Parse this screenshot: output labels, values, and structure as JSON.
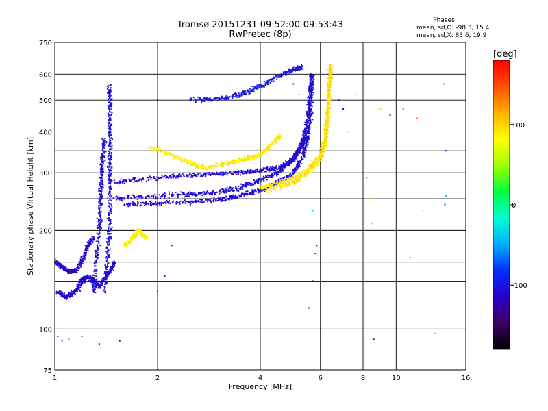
{
  "chart_data": {
    "type": "scatter",
    "title": "Tromsø 20151231 09:52:00-09:53:43",
    "subtitle": "RwPretec (8p)",
    "xlabel": "Frequency [MHz]",
    "ylabel": "Stationary phase Virtual Height [km]",
    "x_scale": "log2",
    "y_scale": "log",
    "xlim": [
      1,
      16
    ],
    "ylim": [
      75,
      750
    ],
    "x_ticks": [
      1,
      2,
      4,
      6,
      8,
      10,
      16
    ],
    "x_grid": [
      1,
      2,
      4,
      6,
      8,
      10,
      16
    ],
    "y_ticks": [
      75,
      100,
      200,
      300,
      400,
      500,
      600,
      750
    ],
    "y_grid": [
      100,
      120,
      140,
      160,
      200,
      250,
      300,
      350,
      400,
      500,
      600
    ],
    "grid": true,
    "phase_info": {
      "title": "Phases",
      "line_o": "mean, sd,O: -98.3, 15.4",
      "line_x": "mean, sd,X:  83.6, 19.9"
    },
    "colorbar": {
      "label": "[deg]",
      "range": [
        -180,
        180
      ],
      "tick_values": [
        100,
        0,
        -100
      ],
      "tick_labels": [
        "100",
        "0",
        "-100"
      ],
      "colormap": [
        "#000000",
        "#3c0060",
        "#2a00c8",
        "#0030ff",
        "#00b0ff",
        "#00ffd0",
        "#00ff40",
        "#a0ff00",
        "#ffff00",
        "#ffb000",
        "#ff5000",
        "#ff0000"
      ]
    },
    "series": [
      {
        "name": "",
        "phase": -105,
        "trace": [
          [
            1.4,
            130
          ],
          [
            1.42,
            160
          ],
          [
            1.45,
            200
          ],
          [
            1.45,
            260
          ],
          [
            1.45,
            320
          ],
          [
            1.45,
            400
          ],
          [
            1.45,
            480
          ],
          [
            1.45,
            550
          ]
        ]
      },
      {
        "name": "",
        "phase": -105,
        "trace": [
          [
            1.3,
            130
          ],
          [
            1.32,
            160
          ],
          [
            1.35,
            200
          ],
          [
            1.36,
            240
          ],
          [
            1.37,
            280
          ],
          [
            1.38,
            330
          ],
          [
            1.4,
            380
          ]
        ]
      },
      {
        "name": "",
        "phase": -110,
        "trace": [
          [
            1.0,
            160
          ],
          [
            1.05,
            155
          ],
          [
            1.1,
            150
          ],
          [
            1.15,
            150
          ],
          [
            1.2,
            160
          ],
          [
            1.25,
            180
          ],
          [
            1.3,
            190
          ]
        ]
      },
      {
        "name": "",
        "phase": -110,
        "trace": [
          [
            1.02,
            130
          ],
          [
            1.08,
            125
          ],
          [
            1.15,
            130
          ],
          [
            1.2,
            140
          ],
          [
            1.25,
            145
          ],
          [
            1.3,
            140
          ],
          [
            1.35,
            135
          ],
          [
            1.45,
            150
          ],
          [
            1.5,
            160
          ]
        ]
      },
      {
        "name": "",
        "phase": -108,
        "trace": [
          [
            1.6,
            240
          ],
          [
            2.0,
            242
          ],
          [
            2.5,
            244
          ],
          [
            3.0,
            248
          ],
          [
            3.5,
            255
          ],
          [
            4.0,
            265
          ],
          [
            4.5,
            280
          ],
          [
            5.0,
            300
          ],
          [
            5.3,
            330
          ],
          [
            5.5,
            380
          ],
          [
            5.6,
            440
          ],
          [
            5.65,
            520
          ],
          [
            5.7,
            600
          ]
        ]
      },
      {
        "name": "",
        "phase": -108,
        "trace": [
          [
            1.5,
            250
          ],
          [
            2.0,
            255
          ],
          [
            2.5,
            258
          ],
          [
            3.0,
            262
          ],
          [
            3.5,
            270
          ],
          [
            4.0,
            285
          ],
          [
            4.5,
            300
          ],
          [
            5.0,
            330
          ],
          [
            5.3,
            370
          ],
          [
            5.5,
            430
          ],
          [
            5.6,
            520
          ],
          [
            5.65,
            600
          ]
        ]
      },
      {
        "name": "",
        "phase": -108,
        "trace": [
          [
            1.5,
            280
          ],
          [
            2.0,
            290
          ],
          [
            2.5,
            295
          ],
          [
            3.0,
            298
          ],
          [
            3.5,
            300
          ],
          [
            4.0,
            305
          ],
          [
            4.5,
            310
          ],
          [
            5.0,
            330
          ],
          [
            5.3,
            360
          ],
          [
            5.5,
            410
          ]
        ]
      },
      {
        "name": "",
        "phase": -100,
        "trace": [
          [
            2.5,
            500
          ],
          [
            3.0,
            505
          ],
          [
            3.5,
            520
          ],
          [
            4.0,
            550
          ],
          [
            4.5,
            590
          ],
          [
            5.0,
            620
          ],
          [
            5.3,
            630
          ]
        ]
      },
      {
        "name": "",
        "phase": 90,
        "trace": [
          [
            1.9,
            360
          ],
          [
            2.2,
            340
          ],
          [
            2.5,
            320
          ],
          [
            2.8,
            310
          ],
          [
            3.2,
            320
          ],
          [
            3.6,
            330
          ],
          [
            4.0,
            340
          ],
          [
            4.3,
            365
          ],
          [
            4.6,
            390
          ]
        ]
      },
      {
        "name": "",
        "phase": 92,
        "trace": [
          [
            4.0,
            270
          ],
          [
            4.5,
            278
          ],
          [
            5.0,
            290
          ],
          [
            5.5,
            305
          ],
          [
            6.0,
            340
          ],
          [
            6.2,
            380
          ],
          [
            6.3,
            450
          ],
          [
            6.35,
            520
          ],
          [
            6.4,
            620
          ]
        ]
      },
      {
        "name": "",
        "phase": 95,
        "trace": [
          [
            4.2,
            265
          ],
          [
            5.0,
            280
          ],
          [
            5.5,
            300
          ],
          [
            6.0,
            330
          ],
          [
            6.2,
            370
          ],
          [
            6.3,
            430
          ],
          [
            6.35,
            500
          ],
          [
            6.4,
            580
          ],
          [
            6.45,
            640
          ]
        ]
      },
      {
        "name": "",
        "phase": 85,
        "trace": [
          [
            1.6,
            180
          ],
          [
            1.7,
            190
          ],
          [
            1.75,
            200
          ],
          [
            1.8,
            195
          ],
          [
            1.85,
            190
          ]
        ]
      }
    ],
    "isolated_points": [
      [
        1.02,
        95,
        -110
      ],
      [
        1.05,
        92,
        -80
      ],
      [
        1.1,
        93,
        20
      ],
      [
        1.2,
        95,
        -90
      ],
      [
        1.35,
        90,
        -110
      ],
      [
        1.55,
        92,
        -150
      ],
      [
        2.2,
        180,
        -90
      ],
      [
        2.1,
        145,
        -110
      ],
      [
        2.0,
        130,
        -110
      ],
      [
        2.0,
        500,
        -110
      ],
      [
        5.2,
        520,
        140
      ],
      [
        5.0,
        560,
        -100
      ],
      [
        5.55,
        116,
        -110
      ],
      [
        5.7,
        230,
        -40
      ],
      [
        5.85,
        180,
        -100
      ],
      [
        5.8,
        170,
        -100
      ],
      [
        5.7,
        140,
        -110
      ],
      [
        6.8,
        500,
        -100
      ],
      [
        7.0,
        470,
        -100
      ],
      [
        7.2,
        400,
        120
      ],
      [
        7.6,
        520,
        110
      ],
      [
        8.2,
        290,
        140
      ],
      [
        8.3,
        250,
        120
      ],
      [
        8.5,
        210,
        110
      ],
      [
        8.6,
        93,
        -120
      ],
      [
        9.6,
        450,
        -110
      ],
      [
        10.5,
        470,
        150
      ],
      [
        11.0,
        165,
        140
      ],
      [
        11.5,
        440,
        150
      ],
      [
        12.0,
        230,
        100
      ],
      [
        13.0,
        97,
        110
      ],
      [
        13.8,
        560,
        20
      ],
      [
        14.0,
        350,
        -110
      ],
      [
        14.0,
        255,
        -40
      ],
      [
        13.9,
        240,
        -100
      ],
      [
        9.0,
        470,
        60
      ]
    ]
  }
}
